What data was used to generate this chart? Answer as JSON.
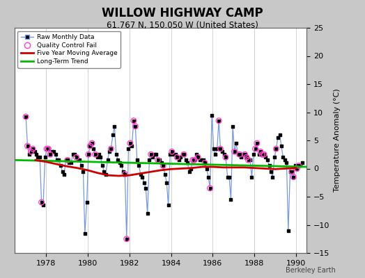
{
  "title": "WILLOW HIGHWAY CAMP",
  "subtitle": "61.767 N, 150.050 W (United States)",
  "ylabel": "Temperature Anomaly (°C)",
  "credit": "Berkeley Earth",
  "xlim": [
    1976.5,
    1990.5
  ],
  "ylim": [
    -15,
    25
  ],
  "yticks": [
    -15,
    -10,
    -5,
    0,
    5,
    10,
    15,
    20,
    25
  ],
  "xticks": [
    1978,
    1980,
    1982,
    1984,
    1986,
    1988,
    1990
  ],
  "bg_color": "#c8c8c8",
  "plot_bg_color": "#ffffff",
  "raw_line_color": "#7799dd",
  "raw_marker_color": "#000000",
  "qc_fail_color": "#ff44cc",
  "moving_avg_color": "#cc0000",
  "trend_color": "#00bb00",
  "raw_x": [
    1977.04,
    1977.12,
    1977.21,
    1977.29,
    1977.37,
    1977.46,
    1977.54,
    1977.62,
    1977.71,
    1977.79,
    1977.87,
    1977.96,
    1978.04,
    1978.12,
    1978.21,
    1978.29,
    1978.37,
    1978.46,
    1978.54,
    1978.62,
    1978.71,
    1978.79,
    1978.87,
    1978.96,
    1979.04,
    1979.12,
    1979.21,
    1979.29,
    1979.37,
    1979.46,
    1979.54,
    1979.62,
    1979.71,
    1979.79,
    1979.87,
    1979.96,
    1980.04,
    1980.12,
    1980.21,
    1980.29,
    1980.37,
    1980.46,
    1980.54,
    1980.62,
    1980.71,
    1980.79,
    1980.87,
    1980.96,
    1981.04,
    1981.12,
    1981.21,
    1981.29,
    1981.37,
    1981.46,
    1981.54,
    1981.62,
    1981.71,
    1981.79,
    1981.87,
    1981.96,
    1982.04,
    1982.12,
    1982.21,
    1982.29,
    1982.37,
    1982.46,
    1982.54,
    1982.62,
    1982.71,
    1982.79,
    1982.87,
    1982.96,
    1983.04,
    1983.12,
    1983.21,
    1983.29,
    1983.37,
    1983.46,
    1983.54,
    1983.62,
    1983.71,
    1983.79,
    1983.87,
    1983.96,
    1984.04,
    1984.12,
    1984.21,
    1984.29,
    1984.37,
    1984.46,
    1984.54,
    1984.62,
    1984.71,
    1984.79,
    1984.87,
    1984.96,
    1985.04,
    1985.12,
    1985.21,
    1985.29,
    1985.37,
    1985.46,
    1985.54,
    1985.62,
    1985.71,
    1985.79,
    1985.87,
    1985.96,
    1986.04,
    1986.12,
    1986.21,
    1986.29,
    1986.37,
    1986.46,
    1986.54,
    1986.62,
    1986.71,
    1986.79,
    1986.87,
    1986.96,
    1987.04,
    1987.12,
    1987.21,
    1987.29,
    1987.37,
    1987.46,
    1987.54,
    1987.62,
    1987.71,
    1987.79,
    1987.87,
    1987.96,
    1988.04,
    1988.12,
    1988.21,
    1988.29,
    1988.37,
    1988.46,
    1988.54,
    1988.62,
    1988.71,
    1988.79,
    1988.87,
    1988.96,
    1989.04,
    1989.12,
    1989.21,
    1989.29,
    1989.37,
    1989.46,
    1989.54,
    1989.62,
    1989.71,
    1989.79,
    1989.87,
    1989.96,
    1990.04,
    1990.12,
    1990.21,
    1990.29
  ],
  "raw_y": [
    9.2,
    4.0,
    2.5,
    3.0,
    3.5,
    3.0,
    2.5,
    2.0,
    2.0,
    -6.0,
    -6.5,
    2.0,
    3.5,
    3.5,
    2.5,
    3.0,
    3.0,
    2.5,
    1.5,
    1.5,
    0.5,
    -0.5,
    -1.0,
    1.5,
    1.5,
    1.0,
    1.0,
    2.5,
    2.5,
    2.0,
    1.5,
    1.5,
    0.5,
    -0.5,
    -11.5,
    -6.0,
    2.5,
    4.0,
    4.5,
    3.5,
    2.5,
    2.0,
    2.5,
    2.0,
    0.5,
    -0.5,
    -1.0,
    1.5,
    3.0,
    3.5,
    6.0,
    7.5,
    2.5,
    1.5,
    1.0,
    0.5,
    -0.5,
    -1.0,
    -12.5,
    3.5,
    4.5,
    4.0,
    8.5,
    7.5,
    1.5,
    0.5,
    -1.0,
    -1.5,
    -2.5,
    -3.5,
    -8.0,
    1.5,
    2.5,
    2.0,
    2.5,
    2.5,
    1.5,
    1.5,
    1.0,
    0.5,
    -1.0,
    -2.5,
    -6.5,
    2.5,
    3.0,
    2.5,
    2.5,
    2.0,
    1.5,
    2.0,
    2.5,
    2.5,
    1.5,
    1.0,
    -0.5,
    0.0,
    1.5,
    1.5,
    2.5,
    2.0,
    1.5,
    1.5,
    1.5,
    1.0,
    0.0,
    -1.5,
    -3.5,
    9.5,
    3.5,
    2.5,
    3.5,
    8.5,
    3.5,
    3.0,
    2.5,
    2.0,
    -1.5,
    -1.5,
    -5.5,
    7.5,
    3.0,
    4.5,
    2.5,
    2.5,
    2.0,
    2.5,
    2.5,
    2.0,
    1.5,
    1.5,
    -1.5,
    2.5,
    3.5,
    4.5,
    2.5,
    3.0,
    2.5,
    2.5,
    2.0,
    1.5,
    0.5,
    -0.5,
    -1.5,
    2.0,
    3.5,
    5.5,
    6.0,
    4.0,
    2.0,
    1.5,
    1.0,
    -11.0,
    -0.5,
    -0.5,
    -1.5,
    0.5,
    0.0,
    0.5,
    0.5,
    1.0
  ],
  "qc_fail_x": [
    1977.04,
    1977.12,
    1977.29,
    1977.37,
    1977.79,
    1978.04,
    1978.12,
    1978.21,
    1979.04,
    1979.46,
    1980.04,
    1980.12,
    1980.21,
    1980.37,
    1981.12,
    1981.79,
    1981.87,
    1982.04,
    1982.21,
    1982.29,
    1983.04,
    1983.37,
    1983.62,
    1984.04,
    1984.29,
    1984.62,
    1985.04,
    1985.12,
    1985.29,
    1985.62,
    1985.87,
    1986.29,
    1986.37,
    1986.62,
    1987.04,
    1987.29,
    1987.54,
    1987.62,
    1987.71,
    1988.04,
    1988.12,
    1988.29,
    1988.37,
    1988.46,
    1989.04,
    1989.79,
    1989.87,
    1990.04,
    1990.12
  ],
  "qc_fail_y": [
    9.2,
    4.0,
    3.0,
    3.5,
    -6.0,
    3.5,
    3.5,
    2.5,
    1.5,
    2.0,
    2.5,
    4.0,
    4.5,
    2.5,
    3.5,
    -1.0,
    -12.5,
    4.5,
    8.5,
    7.5,
    2.5,
    1.5,
    0.5,
    3.0,
    2.0,
    2.5,
    1.5,
    1.5,
    2.0,
    1.0,
    -3.5,
    8.5,
    3.5,
    2.0,
    3.0,
    2.5,
    2.5,
    2.0,
    1.5,
    3.5,
    4.5,
    3.0,
    2.5,
    2.5,
    3.5,
    -0.5,
    -1.5,
    0.0,
    0.5
  ],
  "moving_avg_x": [
    1977.5,
    1978.0,
    1978.5,
    1979.0,
    1979.5,
    1980.0,
    1980.5,
    1981.0,
    1981.5,
    1982.0,
    1982.5,
    1983.0,
    1983.5,
    1984.0,
    1984.5,
    1985.0,
    1985.5,
    1986.0,
    1986.5,
    1987.0,
    1987.5,
    1988.0,
    1988.5,
    1989.0,
    1989.5,
    1990.0
  ],
  "moving_avg_y": [
    1.5,
    1.2,
    0.8,
    0.4,
    0.1,
    -0.3,
    -0.8,
    -1.2,
    -1.3,
    -1.2,
    -0.9,
    -0.6,
    -0.3,
    -0.1,
    0.0,
    0.1,
    0.3,
    0.3,
    0.2,
    0.2,
    0.2,
    0.1,
    0.0,
    -0.1,
    0.0,
    0.1
  ],
  "trend_x": [
    1976.5,
    1990.5
  ],
  "trend_y": [
    1.5,
    0.3
  ]
}
